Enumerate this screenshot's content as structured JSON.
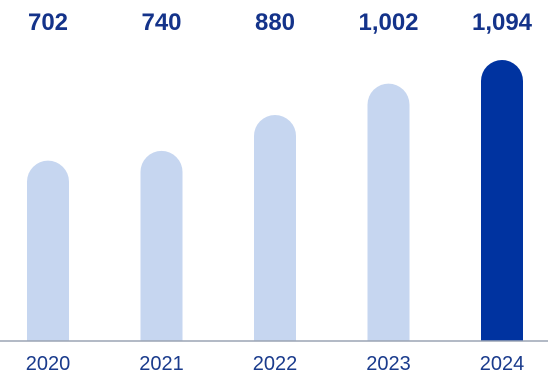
{
  "chart_data": {
    "type": "bar",
    "categories": [
      "2020",
      "2021",
      "2022",
      "2023",
      "2024"
    ],
    "values": [
      702,
      740,
      880,
      1002,
      1094
    ],
    "value_labels": [
      "702",
      "740",
      "880",
      "1,002",
      "1,094"
    ],
    "title": "",
    "xlabel": "",
    "ylabel": "",
    "ylim": [
      0,
      1094
    ],
    "grid": false,
    "legend": "none",
    "highlight_index": 4,
    "colors": {
      "bar": "#c6d6f0",
      "highlight_bar": "#0033a0",
      "label": "#14338a",
      "axis": "#9aa3b3",
      "tick_label": "#1a3b8c"
    }
  }
}
